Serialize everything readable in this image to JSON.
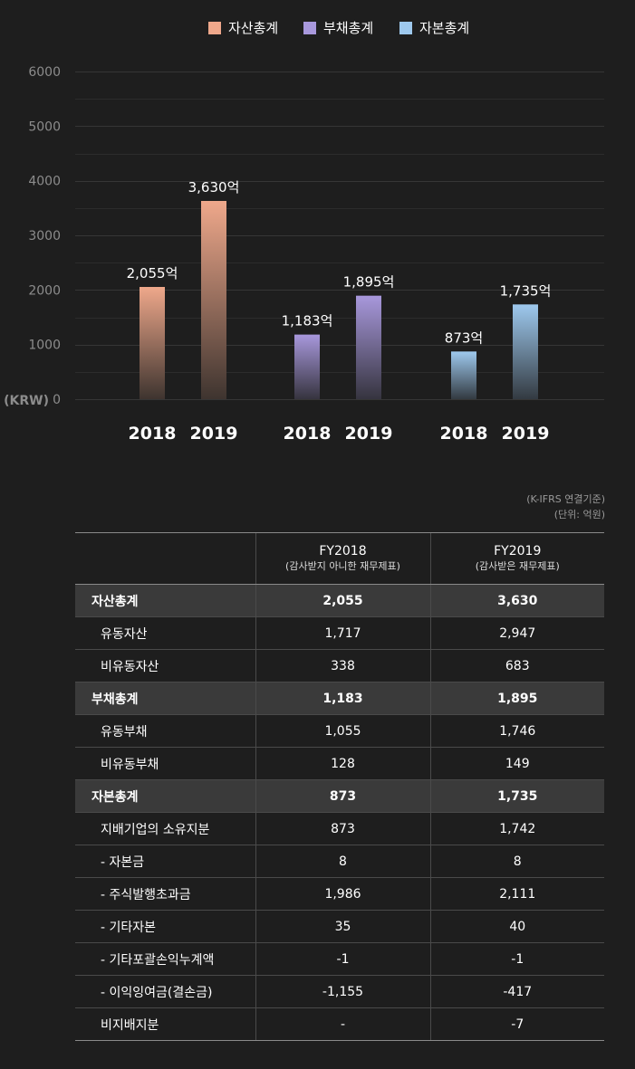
{
  "chart_data": {
    "type": "bar",
    "legend": [
      {
        "name": "자산총계",
        "color": "#efa88b"
      },
      {
        "name": "부채총계",
        "color": "#a898dc"
      },
      {
        "name": "자본총계",
        "color": "#9ec9ee"
      }
    ],
    "groups": [
      {
        "series": "자산총계",
        "categories": [
          "2018",
          "2019"
        ],
        "values": [
          2055,
          3630
        ],
        "labels": [
          "2,055억",
          "3,630억"
        ]
      },
      {
        "series": "부채총계",
        "categories": [
          "2018",
          "2019"
        ],
        "values": [
          1183,
          1895
        ],
        "labels": [
          "1,183억",
          "1,895억"
        ]
      },
      {
        "series": "자본총계",
        "categories": [
          "2018",
          "2019"
        ],
        "values": [
          873,
          1735
        ],
        "labels": [
          "873억",
          "1,735억"
        ]
      }
    ],
    "y_ticks": [
      "6000",
      "5000",
      "4000",
      "3000",
      "2000",
      "1000",
      "0"
    ],
    "ylim": [
      0,
      6000
    ],
    "unit_label": "(KRW)",
    "grid": true
  },
  "table": {
    "basis": "(K-IFRS 연결기준)",
    "unit": "(단위: 억원)",
    "columns": [
      {
        "year": "FY2018",
        "note": "(감사받지 아니한 재무제표)"
      },
      {
        "year": "FY2019",
        "note": "(감사받은 재무제표)"
      }
    ],
    "rows": [
      {
        "label": "자산총계",
        "v2018": "2,055",
        "v2019": "3,630"
      },
      {
        "label": "유동자산",
        "v2018": "1,717",
        "v2019": "2,947"
      },
      {
        "label": "비유동자산",
        "v2018": "338",
        "v2019": "683"
      },
      {
        "label": "부채총계",
        "v2018": "1,183",
        "v2019": "1,895"
      },
      {
        "label": "유동부채",
        "v2018": "1,055",
        "v2019": "1,746"
      },
      {
        "label": "비유동부채",
        "v2018": "128",
        "v2019": "149"
      },
      {
        "label": "자본총계",
        "v2018": "873",
        "v2019": "1,735"
      },
      {
        "label": "지배기업의 소유지분",
        "v2018": "873",
        "v2019": "1,742"
      },
      {
        "label": "- 자본금",
        "v2018": "8",
        "v2019": "8"
      },
      {
        "label": "- 주식발행초과금",
        "v2018": "1,986",
        "v2019": "2,111"
      },
      {
        "label": "- 기타자본",
        "v2018": "35",
        "v2019": "40"
      },
      {
        "label": "- 기타포괄손익누계액",
        "v2018": "-1",
        "v2019": "-1"
      },
      {
        "label": "- 이익잉여금(결손금)",
        "v2018": "-1,155",
        "v2019": "-417"
      },
      {
        "label": "비지배지분",
        "v2018": "-",
        "v2019": "-7"
      }
    ]
  }
}
